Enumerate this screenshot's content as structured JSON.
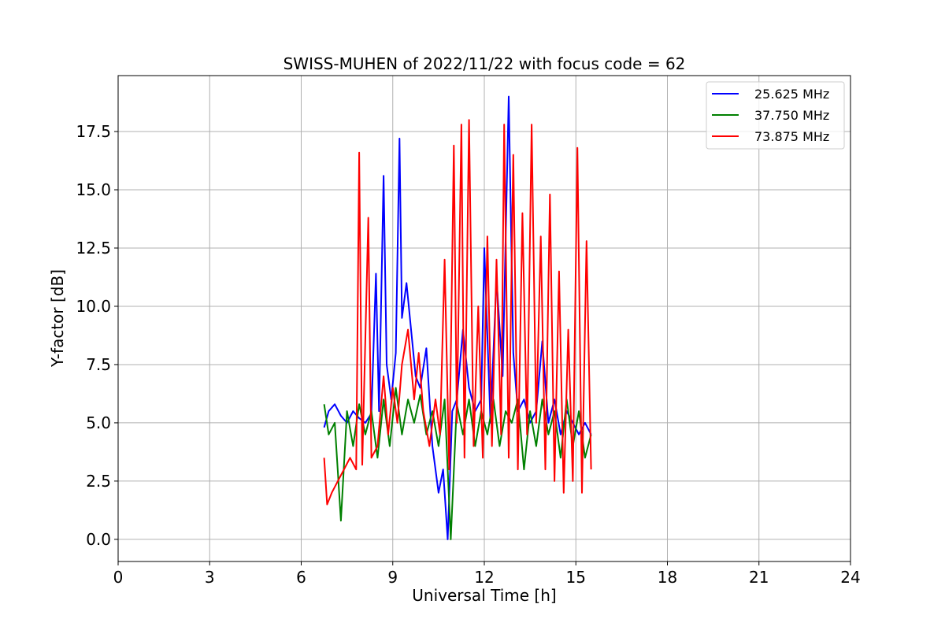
{
  "chart_data": {
    "type": "line",
    "title": "SWISS-MUHEN of 2022/11/22 with focus code = 62",
    "xlabel": "Universal Time [h]",
    "ylabel": "Y-factor [dB]",
    "xlim": [
      0,
      24
    ],
    "ylim": [
      -0.95,
      19.9
    ],
    "xticks": [
      0,
      3,
      6,
      9,
      12,
      15,
      18,
      21,
      24
    ],
    "yticks": [
      0.0,
      2.5,
      5.0,
      7.5,
      10.0,
      12.5,
      15.0,
      17.5
    ],
    "xtick_labels": [
      "0",
      "3",
      "6",
      "9",
      "12",
      "15",
      "18",
      "21",
      "24"
    ],
    "ytick_labels": [
      "0.0",
      "2.5",
      "5.0",
      "7.5",
      "10.0",
      "12.5",
      "15.0",
      "17.5"
    ],
    "grid": true,
    "legend_position": "top-right",
    "series": [
      {
        "name": "25.625 MHz",
        "color": "#0000ff",
        "x": [
          6.75,
          6.9,
          7.1,
          7.3,
          7.5,
          7.7,
          7.9,
          8.1,
          8.3,
          8.45,
          8.55,
          8.7,
          8.8,
          8.95,
          9.1,
          9.22,
          9.3,
          9.45,
          9.6,
          9.75,
          9.9,
          10.1,
          10.3,
          10.5,
          10.65,
          10.8,
          10.95,
          11.1,
          11.3,
          11.5,
          11.7,
          11.9,
          12.0,
          12.2,
          12.4,
          12.6,
          12.8,
          12.95,
          13.1,
          13.3,
          13.5,
          13.7,
          13.9,
          14.1,
          14.3,
          14.5,
          14.7,
          14.9,
          15.1,
          15.3,
          15.5
        ],
        "y": [
          4.8,
          5.5,
          5.8,
          5.3,
          5.0,
          5.5,
          5.2,
          5.0,
          5.4,
          11.4,
          5.5,
          15.6,
          7.5,
          6.0,
          8.0,
          17.2,
          9.5,
          11.0,
          9.0,
          7.0,
          6.5,
          8.2,
          4.0,
          2.0,
          3.0,
          0.0,
          5.5,
          6.0,
          9.0,
          6.5,
          5.5,
          6.0,
          12.5,
          5.0,
          11.2,
          7.0,
          19.0,
          8.0,
          5.5,
          6.0,
          5.0,
          5.5,
          8.5,
          5.0,
          6.0,
          4.5,
          5.5,
          5.0,
          4.5,
          5.0,
          4.5
        ]
      },
      {
        "name": "37.750 MHz",
        "color": "#008000",
        "x": [
          6.75,
          6.9,
          7.1,
          7.3,
          7.5,
          7.7,
          7.9,
          8.1,
          8.3,
          8.5,
          8.7,
          8.9,
          9.1,
          9.3,
          9.5,
          9.7,
          9.9,
          10.1,
          10.3,
          10.5,
          10.7,
          10.9,
          11.1,
          11.3,
          11.5,
          11.7,
          11.9,
          12.1,
          12.3,
          12.5,
          12.7,
          12.9,
          13.1,
          13.3,
          13.5,
          13.7,
          13.9,
          14.1,
          14.3,
          14.5,
          14.7,
          14.9,
          15.1,
          15.3,
          15.5
        ],
        "y": [
          5.8,
          4.5,
          5.0,
          0.8,
          5.5,
          4.0,
          5.8,
          4.5,
          5.5,
          3.5,
          6.0,
          4.0,
          6.5,
          4.5,
          6.0,
          5.0,
          6.2,
          4.5,
          5.5,
          4.0,
          6.0,
          0.0,
          5.8,
          4.5,
          6.0,
          4.0,
          5.5,
          4.5,
          6.0,
          4.0,
          5.5,
          5.0,
          6.0,
          3.0,
          5.5,
          4.0,
          6.0,
          4.5,
          5.5,
          3.5,
          6.0,
          4.0,
          5.5,
          3.5,
          4.5
        ]
      },
      {
        "name": "73.875 MHz",
        "color": "#ff0000",
        "x": [
          6.75,
          6.85,
          7.0,
          7.2,
          7.4,
          7.6,
          7.8,
          7.9,
          8.0,
          8.2,
          8.3,
          8.5,
          8.7,
          8.85,
          9.0,
          9.15,
          9.3,
          9.5,
          9.7,
          9.85,
          10.0,
          10.2,
          10.4,
          10.55,
          10.7,
          10.85,
          11.0,
          11.1,
          11.25,
          11.35,
          11.5,
          11.65,
          11.8,
          11.95,
          12.1,
          12.25,
          12.4,
          12.55,
          12.65,
          12.8,
          12.95,
          13.1,
          13.25,
          13.4,
          13.55,
          13.7,
          13.85,
          14.0,
          14.15,
          14.3,
          14.45,
          14.6,
          14.75,
          14.9,
          15.05,
          15.2,
          15.35,
          15.5
        ],
        "y": [
          3.5,
          1.5,
          2.0,
          2.5,
          3.0,
          3.5,
          3.0,
          16.6,
          3.2,
          13.8,
          3.5,
          4.0,
          7.0,
          4.5,
          6.5,
          5.0,
          7.5,
          9.0,
          6.0,
          8.0,
          5.5,
          4.0,
          6.0,
          4.5,
          12.0,
          3.0,
          16.9,
          5.0,
          17.8,
          3.5,
          18.0,
          4.0,
          10.0,
          3.5,
          13.0,
          4.0,
          12.0,
          4.5,
          17.8,
          3.5,
          16.5,
          3.0,
          14.0,
          4.5,
          17.8,
          5.0,
          13.0,
          3.0,
          14.8,
          2.5,
          11.5,
          2.0,
          9.0,
          2.5,
          16.8,
          2.0,
          12.8,
          3.0
        ]
      }
    ]
  }
}
